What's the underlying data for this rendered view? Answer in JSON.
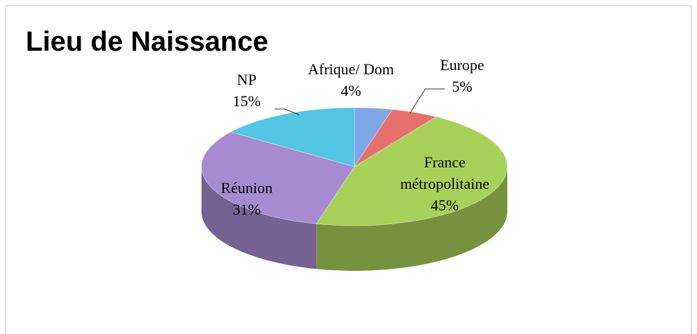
{
  "chart_data": {
    "type": "pie",
    "title": "Lieu de Naissance",
    "categories": [
      "Afrique/ Dom",
      "Europe",
      "France métropolitaine",
      "Réunion",
      "NP"
    ],
    "values": [
      4,
      5,
      45,
      31,
      15
    ],
    "value_labels": [
      "4%",
      "5%",
      "45%",
      "31%",
      "15%"
    ],
    "colors": [
      "#7fa7e8",
      "#e8706c",
      "#a8d15a",
      "#a78bd0",
      "#52c6e2"
    ]
  }
}
